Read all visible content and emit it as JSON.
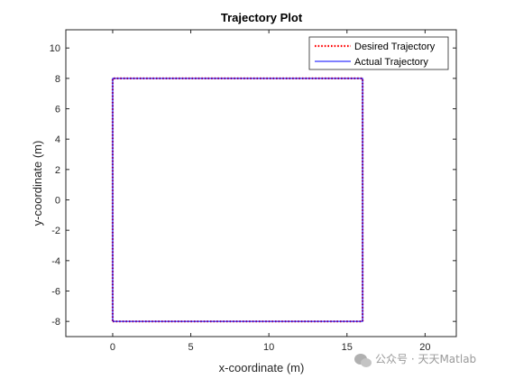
{
  "chart_data": {
    "type": "line",
    "title": "Trajectory Plot",
    "xlabel": "x-coordinate (m)",
    "ylabel": "y-coordinate (m)",
    "xlim": [
      -3,
      22
    ],
    "ylim": [
      -9,
      11.2
    ],
    "xticks": [
      0,
      5,
      10,
      15,
      20
    ],
    "yticks": [
      -8,
      -6,
      -4,
      -2,
      0,
      2,
      4,
      6,
      8,
      10
    ],
    "grid": false,
    "legend_location": "top-right",
    "series": [
      {
        "name": "Desired Trajectory",
        "style": "dotted",
        "color": "#ff0000",
        "x": [
          0,
          16,
          16,
          0,
          0
        ],
        "y": [
          -8,
          -8,
          8,
          8,
          -8
        ]
      },
      {
        "name": "Actual Trajectory",
        "style": "solid",
        "color": "#0000ff",
        "x": [
          0,
          16,
          16,
          0,
          0
        ],
        "y": [
          -8,
          -8,
          8,
          8,
          -8
        ]
      }
    ]
  },
  "watermark": {
    "icon": "wechat-icon",
    "text": "公众号 · 天天Matlab"
  }
}
